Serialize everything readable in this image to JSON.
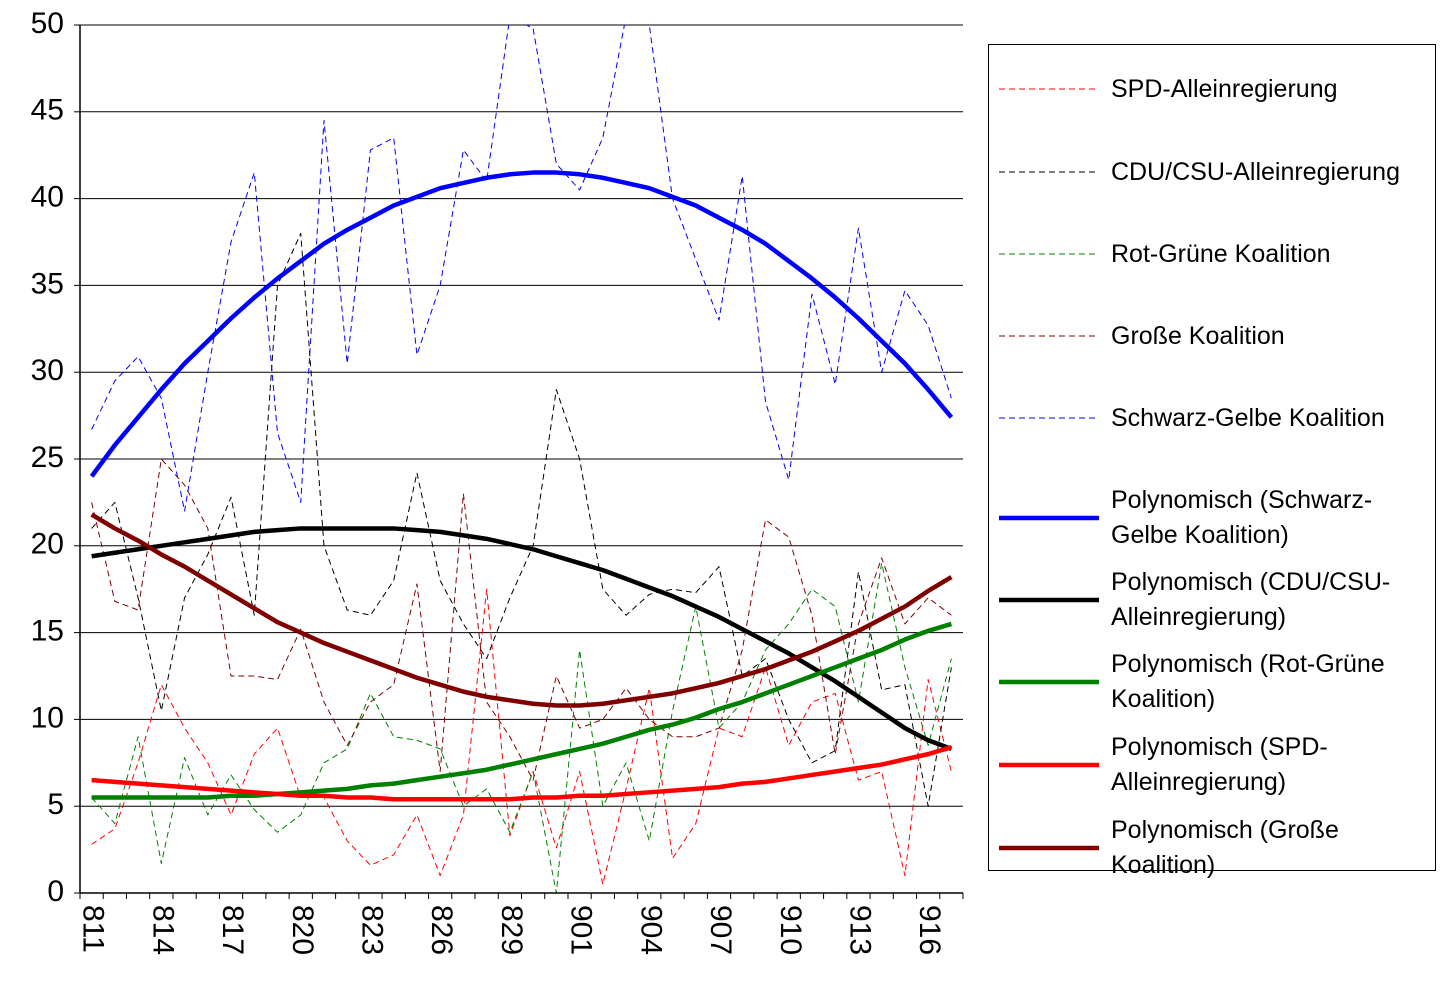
{
  "chart_data": {
    "type": "line",
    "categories": [
      "811",
      null,
      null,
      "814",
      null,
      null,
      "817",
      null,
      null,
      "820",
      null,
      null,
      "823",
      null,
      null,
      "826",
      null,
      null,
      "829",
      null,
      null,
      "901",
      null,
      null,
      "904",
      null,
      null,
      "907",
      null,
      null,
      "910",
      null,
      null,
      "913",
      null,
      null,
      "916",
      null
    ],
    "ylim": [
      0,
      50
    ],
    "yticks": [
      0,
      5,
      10,
      15,
      20,
      25,
      30,
      35,
      40,
      45,
      50
    ],
    "grid": true,
    "legend": "right",
    "series": [
      {
        "name": "SPD-Alleinregierung",
        "color": "#ff0000",
        "style": "dashed",
        "values": [
          2.8,
          3.7,
          7.5,
          12,
          9.5,
          7.5,
          4.5,
          8,
          9.5,
          5.5,
          5.5,
          3,
          1.6,
          2.2,
          4.5,
          1,
          4.5,
          17.5,
          3.3,
          7,
          2.6,
          7,
          0.5,
          6,
          11.8,
          2,
          4,
          9.5,
          9,
          13,
          8.5,
          11,
          11.5,
          6.5,
          7,
          1,
          12.3,
          7
        ]
      },
      {
        "name": "CDU/CSU-Alleinregierung",
        "color": "#000000",
        "style": "dashed",
        "values": [
          21,
          22.5,
          17,
          10.5,
          17,
          19.5,
          22.8,
          16,
          35,
          38,
          20,
          16.3,
          16,
          18,
          24.2,
          18,
          15.5,
          13.5,
          17,
          20,
          29,
          25,
          17.5,
          16,
          17.2,
          17.5,
          17.3,
          18.8,
          12.5,
          13.5,
          10,
          7.5,
          8.2,
          18.5,
          11.7,
          12,
          5,
          13
        ]
      },
      {
        "name": "Rot-Grüne Koalition",
        "color": "#008000",
        "style": "dashed",
        "values": [
          5.5,
          4,
          9,
          1.7,
          7.8,
          4.5,
          6.8,
          4.8,
          3.5,
          4.5,
          7.5,
          8.3,
          11.5,
          9,
          8.8,
          8.3,
          5,
          6,
          3.5,
          7,
          0,
          14,
          5,
          7.5,
          3,
          10.5,
          16.5,
          9.5,
          11,
          14,
          15.5,
          17.5,
          16.5,
          11,
          19,
          13,
          8.5,
          13.5
        ]
      },
      {
        "name": "Große Koalition",
        "color": "#800000",
        "style": "dashed",
        "values": [
          22.5,
          16.8,
          16.3,
          25,
          23.5,
          21,
          12.5,
          12.5,
          12.3,
          15.2,
          11,
          8.5,
          11,
          12,
          17.8,
          7,
          23,
          11,
          9,
          6.5,
          12.5,
          9.5,
          10,
          11.8,
          10,
          9,
          9,
          9.5,
          14,
          21.5,
          20.5,
          16,
          8,
          15.5,
          19.3,
          15.5,
          17,
          16
        ]
      },
      {
        "name": "Schwarz-Gelbe Koalition",
        "color": "#0000ff",
        "style": "dashed",
        "values": [
          26.7,
          29.5,
          30.9,
          28.5,
          22,
          30,
          37.5,
          41.5,
          26.5,
          22.5,
          44.5,
          30.5,
          42.8,
          43.5,
          31,
          35,
          42.8,
          41,
          50.5,
          49.8,
          42,
          40.5,
          43.5,
          50.5,
          50,
          40,
          36.5,
          33,
          41.3,
          28.3,
          23.8,
          34.5,
          29.3,
          38.3,
          30,
          34.7,
          32.7,
          28.5
        ]
      },
      {
        "name": "Polynomisch (Schwarz-Gelbe Koalition)",
        "color": "#0000ff",
        "style": "solid",
        "values": [
          24,
          25.8,
          27.4,
          29,
          30.5,
          31.8,
          33.1,
          34.3,
          35.4,
          36.4,
          37.4,
          38.2,
          38.9,
          39.6,
          40.1,
          40.6,
          40.9,
          41.2,
          41.4,
          41.5,
          41.5,
          41.4,
          41.2,
          40.9,
          40.6,
          40.1,
          39.6,
          38.9,
          38.2,
          37.4,
          36.4,
          35.4,
          34.3,
          33.1,
          31.8,
          30.5,
          29,
          27.4
        ]
      },
      {
        "name": "Polynomisch (CDU/CSU-Alleinregierung)",
        "color": "#000000",
        "style": "solid",
        "values": [
          19.4,
          19.6,
          19.8,
          20,
          20.2,
          20.4,
          20.6,
          20.8,
          20.9,
          21,
          21,
          21,
          21,
          21,
          20.9,
          20.8,
          20.6,
          20.4,
          20.1,
          19.8,
          19.4,
          19,
          18.6,
          18.1,
          17.6,
          17.1,
          16.5,
          15.9,
          15.2,
          14.5,
          13.8,
          13,
          12.2,
          11.3,
          10.4,
          9.5,
          8.8,
          8.3
        ]
      },
      {
        "name": "Polynomisch (Rot-Grüne Koalition)",
        "color": "#008000",
        "style": "solid",
        "values": [
          5.5,
          5.5,
          5.5,
          5.5,
          5.5,
          5.5,
          5.6,
          5.6,
          5.7,
          5.8,
          5.9,
          6,
          6.2,
          6.3,
          6.5,
          6.7,
          6.9,
          7.1,
          7.4,
          7.7,
          8,
          8.3,
          8.6,
          9,
          9.4,
          9.7,
          10.1,
          10.6,
          11,
          11.5,
          12,
          12.5,
          13,
          13.5,
          14,
          14.6,
          15.1,
          15.5
        ]
      },
      {
        "name": "Polynomisch (SPD-Alleinregierung)",
        "color": "#ff0000",
        "style": "solid",
        "values": [
          6.5,
          6.4,
          6.3,
          6.2,
          6.1,
          6,
          5.9,
          5.8,
          5.7,
          5.6,
          5.6,
          5.5,
          5.5,
          5.4,
          5.4,
          5.4,
          5.4,
          5.4,
          5.4,
          5.5,
          5.5,
          5.6,
          5.6,
          5.7,
          5.8,
          5.9,
          6,
          6.1,
          6.3,
          6.4,
          6.6,
          6.8,
          7,
          7.2,
          7.4,
          7.7,
          8,
          8.4
        ]
      },
      {
        "name": "Polynomisch (Große Koalition)",
        "color": "#800000",
        "style": "solid",
        "values": [
          21.8,
          21,
          20.3,
          19.5,
          18.8,
          18,
          17.2,
          16.4,
          15.6,
          15,
          14.4,
          13.9,
          13.4,
          12.9,
          12.4,
          12,
          11.6,
          11.3,
          11.1,
          10.9,
          10.8,
          10.8,
          10.9,
          11.1,
          11.3,
          11.5,
          11.8,
          12.1,
          12.5,
          12.9,
          13.4,
          13.9,
          14.5,
          15.1,
          15.8,
          16.5,
          17.4,
          18.2
        ]
      }
    ]
  }
}
